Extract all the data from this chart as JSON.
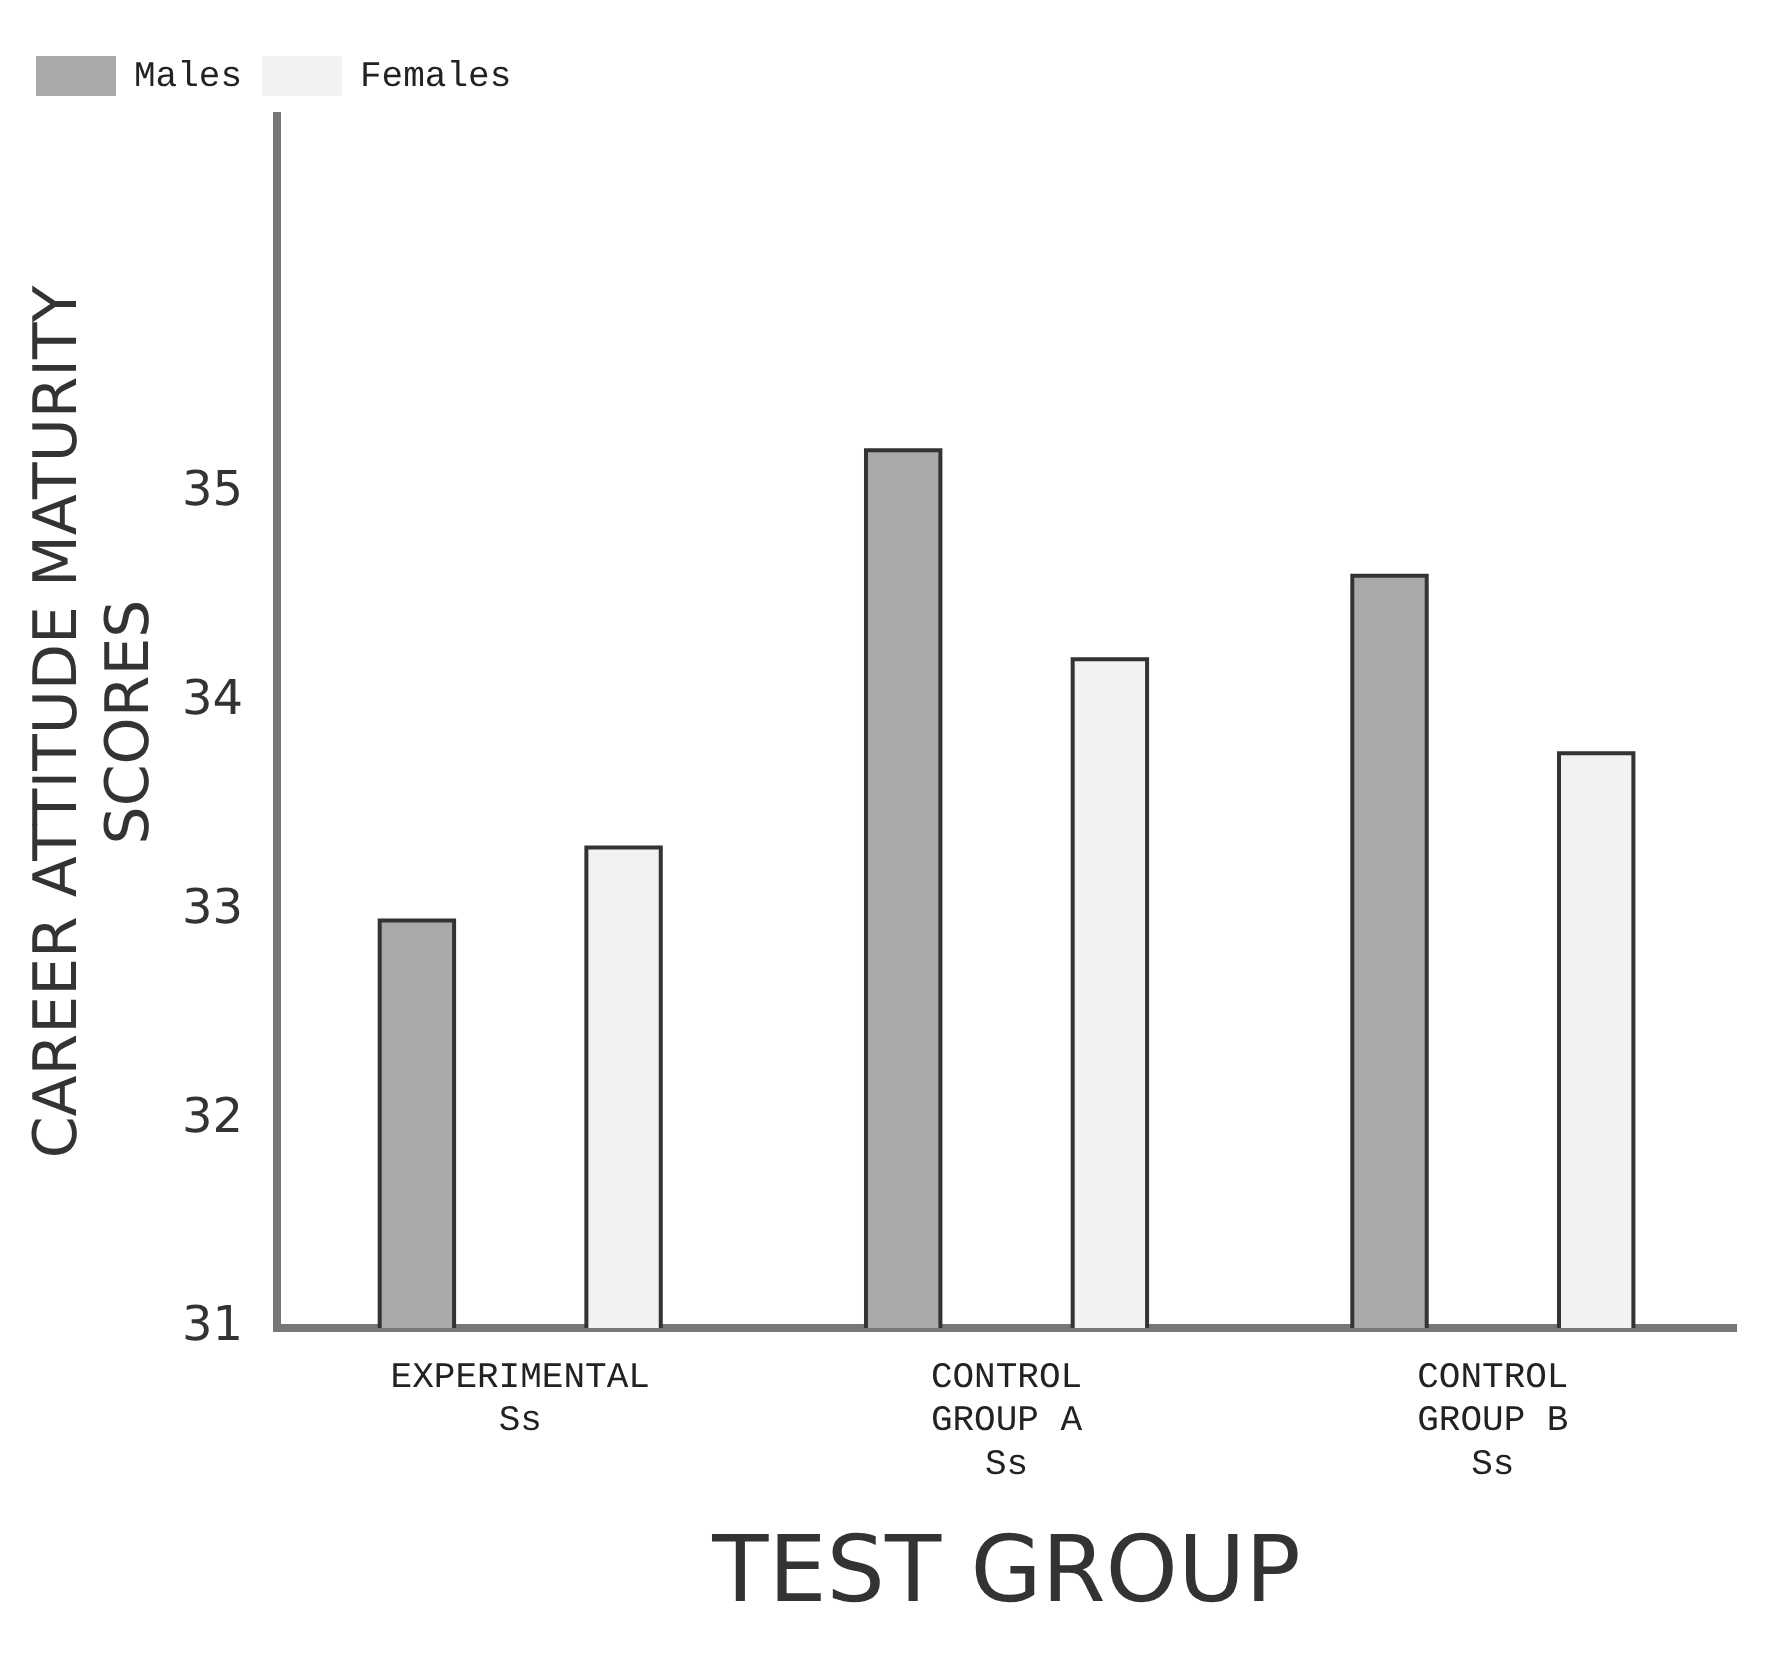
{
  "chart_data": {
    "type": "bar",
    "xlabel": "TEST GROUP",
    "ylabel": "CAREER ATTITUDE MATURITY\nSCORES",
    "categories": [
      "EXPERIMENTAL\nSs",
      "CONTROL\nGROUP A\nSs",
      "CONTROL\nGROUP B\nSs"
    ],
    "series": [
      {
        "name": "Males",
        "color": "#a9a9a9",
        "values": [
          32.95,
          35.2,
          34.6
        ]
      },
      {
        "name": "Females",
        "color": "#f2f2f2",
        "values": [
          33.3,
          34.2,
          33.75
        ]
      }
    ],
    "ylim": [
      31,
      36.8
    ],
    "yticks": [
      31,
      32,
      33,
      34,
      35
    ],
    "grid": false,
    "legend": "top left"
  }
}
